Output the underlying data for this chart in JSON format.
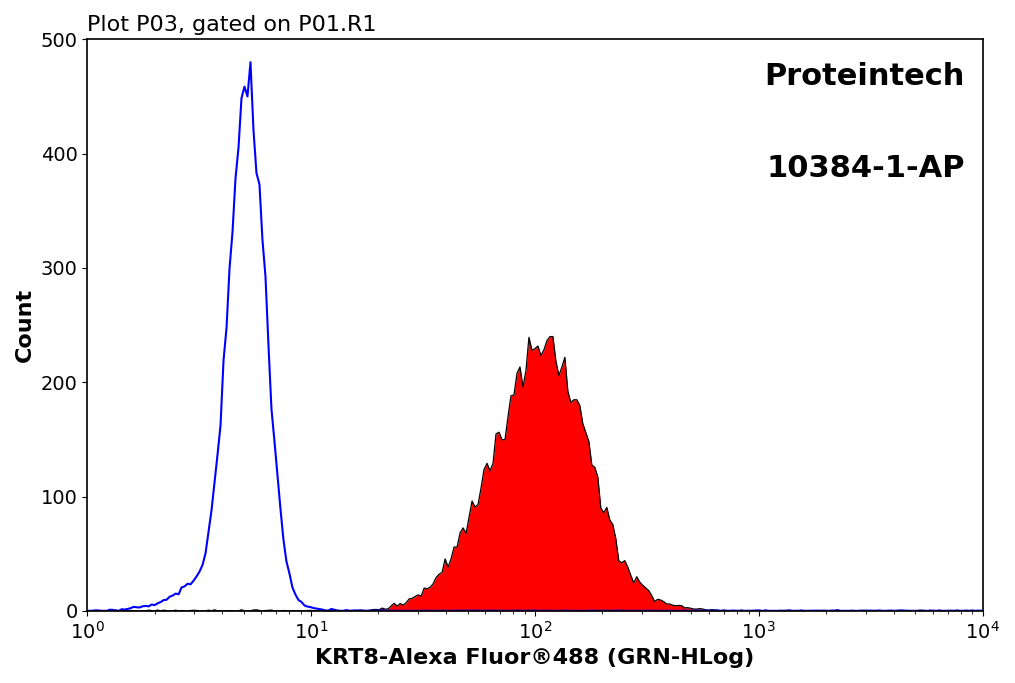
{
  "title": "Plot P03, gated on P01.R1",
  "xlabel": "KRT8-Alexa Fluor®488 (GRN-HLog)",
  "ylabel": "Count",
  "brand_line1": "Proteintech",
  "brand_line2": "10384-1-AP",
  "xlim": [
    1,
    10000
  ],
  "ylim": [
    0,
    500
  ],
  "yticks": [
    0,
    100,
    200,
    300,
    400,
    500
  ],
  "blue_color": "#0000ff",
  "red_color": "#ff0000",
  "black_color": "#000000",
  "background_color": "#ffffff",
  "title_fontsize": 16,
  "label_fontsize": 16,
  "brand_fontsize": 22,
  "tick_fontsize": 14
}
